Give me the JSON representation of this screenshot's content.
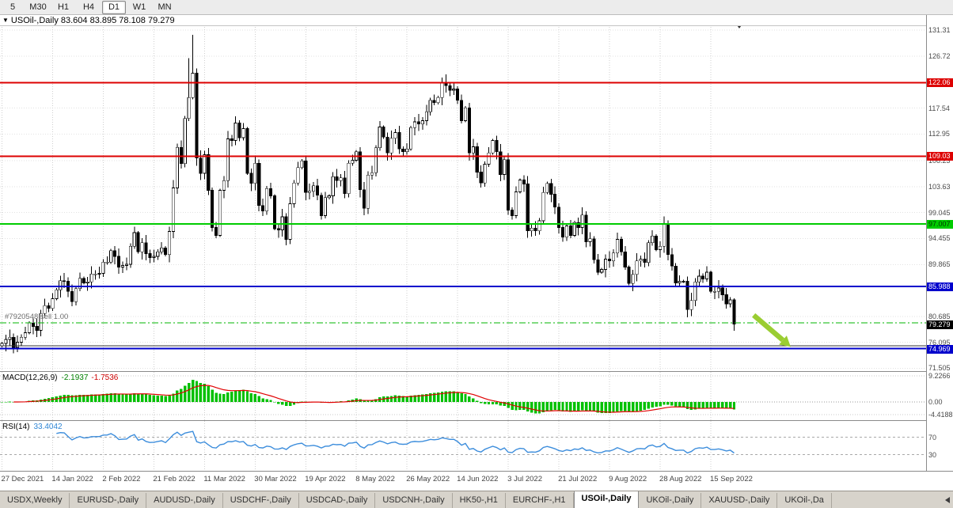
{
  "toolbar": {
    "timeframes": [
      {
        "label": "5",
        "active": false
      },
      {
        "label": "M30",
        "active": false
      },
      {
        "label": "H1",
        "active": false
      },
      {
        "label": "H4",
        "active": false
      },
      {
        "label": "D1",
        "active": true
      },
      {
        "label": "W1",
        "active": false
      },
      {
        "label": "MN",
        "active": false
      }
    ]
  },
  "chart_header": {
    "text": "USOil-,Daily 83.604 83.895 78.108 79.279"
  },
  "trade": {
    "label": "#7920548 sell 1.00",
    "price": 79.55
  },
  "price_axis": {
    "plain_labels": [
      "131.31",
      "126.72",
      "117.54",
      "112.95",
      "108.23",
      "103.63",
      "99.045",
      "94.455",
      "89.865",
      "80.685",
      "76.095",
      "71.505"
    ],
    "badges": [
      {
        "text": "122.06",
        "bg": "#dd0000",
        "fg": "#ffffff"
      },
      {
        "text": "109.03",
        "bg": "#dd0000",
        "fg": "#ffffff"
      },
      {
        "text": "97.007",
        "bg": "#00cc00",
        "fg": "#003300"
      },
      {
        "text": "85.988",
        "bg": "#0000cc",
        "fg": "#ffffff"
      },
      {
        "text": "79.279",
        "bg": "#000000",
        "fg": "#ffffff"
      },
      {
        "text": "74.969",
        "bg": "#0000cc",
        "fg": "#ffffff"
      }
    ]
  },
  "chart_data": {
    "type": "candlestick",
    "symbol": "USOil-",
    "timeframe": "Daily",
    "current_bar": {
      "open": 83.604,
      "high": 83.895,
      "low": 78.108,
      "close": 79.279
    },
    "ylim": [
      71.0,
      134.0
    ],
    "x_labels": [
      "27 Dec 2021",
      "14 Jan 2022",
      "2 Feb 2022",
      "21 Feb 2022",
      "11 Mar 2022",
      "30 Mar 2022",
      "19 Apr 2022",
      "8 May 2022",
      "26 May 2022",
      "14 Jun 2022",
      "3 Jul 2022",
      "21 Jul 2022",
      "9 Aug 2022",
      "28 Aug 2022",
      "15 Sep 2022"
    ],
    "bars_per_label": 13,
    "closes": [
      75.9,
      76.6,
      77.0,
      75.2,
      76.1,
      77.0,
      77.8,
      79.5,
      78.9,
      78.2,
      81.2,
      82.6,
      82.1,
      83.8,
      85.4,
      87.0,
      86.9,
      85.1,
      83.3,
      85.6,
      87.4,
      86.6,
      86.8,
      88.2,
      88.2,
      88.3,
      90.3,
      90.3,
      92.3,
      91.3,
      89.4,
      89.7,
      89.9,
      93.1,
      95.5,
      92.1,
      93.7,
      91.8,
      91.1,
      91.3,
      92.1,
      92.8,
      91.6,
      95.7,
      103.4,
      110.6,
      107.7,
      115.7,
      119.4,
      123.7,
      108.7,
      106.0,
      109.3,
      103.0,
      96.4,
      95.0,
      103.0,
      104.7,
      112.1,
      111.8,
      114.9,
      112.3,
      113.9,
      106.0,
      104.2,
      107.8,
      100.3,
      99.3,
      103.3,
      102.0,
      96.2,
      96.0,
      98.3,
      94.3,
      100.6,
      104.3,
      107.0,
      108.2,
      102.6,
      102.8,
      103.8,
      102.1,
      98.5,
      101.7,
      102.0,
      105.4,
      104.7,
      105.2,
      102.4,
      107.8,
      108.3,
      109.8,
      103.1,
      99.8,
      105.7,
      106.1,
      110.5,
      114.2,
      112.4,
      109.6,
      112.2,
      113.2,
      110.3,
      109.8,
      110.3,
      114.1,
      115.1,
      114.7,
      115.3,
      116.9,
      118.9,
      118.5,
      119.4,
      122.1,
      121.5,
      120.7,
      120.9,
      118.9,
      115.3,
      117.6,
      109.6,
      110.7,
      106.2,
      104.3,
      107.6,
      109.6,
      111.8,
      109.8,
      105.8,
      108.4,
      99.5,
      98.5,
      102.7,
      104.8,
      104.1,
      95.8,
      96.3,
      95.8,
      97.6,
      102.6,
      104.2,
      102.3,
      100.0,
      96.4,
      94.7,
      96.7,
      95.0,
      97.3,
      96.4,
      98.6,
      93.9,
      94.4,
      90.7,
      88.5,
      89.0,
      90.8,
      90.5,
      91.9,
      94.3,
      92.1,
      89.4,
      86.5,
      88.1,
      90.5,
      90.8,
      90.2,
      93.7,
      94.9,
      92.5,
      93.1,
      97.0,
      91.6,
      89.6,
      86.6,
      86.9,
      86.9,
      81.9,
      83.5,
      86.8,
      87.8,
      87.3,
      88.5,
      85.1,
      85.1,
      85.7,
      84.5,
      82.9,
      83.6,
      79.279
    ],
    "overrides": {
      "48": {
        "high": 126.4
      },
      "49": {
        "high": 130.5
      },
      "188": {
        "open": 83.604,
        "high": 83.895,
        "low": 78.108,
        "close": 79.279
      }
    },
    "hlines": [
      {
        "value": 122.06,
        "color": "#dd0000",
        "width": 2,
        "style": "solid"
      },
      {
        "value": 109.03,
        "color": "#dd0000",
        "width": 2,
        "style": "solid"
      },
      {
        "value": 97.007,
        "color": "#00cc00",
        "width": 2,
        "style": "solid"
      },
      {
        "value": 85.988,
        "color": "#0000cc",
        "width": 2,
        "style": "solid"
      },
      {
        "value": 74.969,
        "color": "#0000cc",
        "width": 2,
        "style": "solid"
      },
      {
        "value": 75.5,
        "color": "#333333",
        "width": 1,
        "style": "solid"
      },
      {
        "value": 79.55,
        "color": "#00b400",
        "width": 1,
        "style": "dashdot"
      }
    ],
    "objects": [
      {
        "type": "arrow",
        "color": "#9acd32",
        "from_bar": 193,
        "from_price": 80.9,
        "to_bar": 202.5,
        "to_price": 75.3
      }
    ],
    "indicators": [
      {
        "name": "MACD",
        "params": "(12,26,9)",
        "values": [
          "-2.1937",
          "-1.7536"
        ],
        "axis_labels": [
          "9.2266",
          "0.00",
          "-4.4188"
        ],
        "range": [
          -4.4188,
          9.2266
        ],
        "histogram_color": "#00c000",
        "signal_color": "#e00000"
      },
      {
        "name": "RSI",
        "params": "(14)",
        "values": [
          "33.4042"
        ],
        "axis_labels": [
          "70",
          "30"
        ],
        "levels": [
          70,
          30
        ],
        "range": [
          0,
          100
        ],
        "line_color": "#3c8ddc"
      }
    ]
  },
  "tabs": {
    "items": [
      {
        "label": "USDX,Weekly",
        "active": false
      },
      {
        "label": "EURUSD-,Daily",
        "active": false
      },
      {
        "label": "AUDUSD-,Daily",
        "active": false
      },
      {
        "label": "USDCHF-,Daily",
        "active": false
      },
      {
        "label": "USDCAD-,Daily",
        "active": false
      },
      {
        "label": "USDCNH-,Daily",
        "active": false
      },
      {
        "label": "HK50-,H1",
        "active": false
      },
      {
        "label": "EURCHF-,H1",
        "active": false
      },
      {
        "label": "USOil-,Daily",
        "active": true
      },
      {
        "label": "UKOil-,Daily",
        "active": false
      },
      {
        "label": "XAUUSD-,Daily",
        "active": false
      },
      {
        "label": "UKOil-,Da",
        "active": false
      }
    ]
  }
}
